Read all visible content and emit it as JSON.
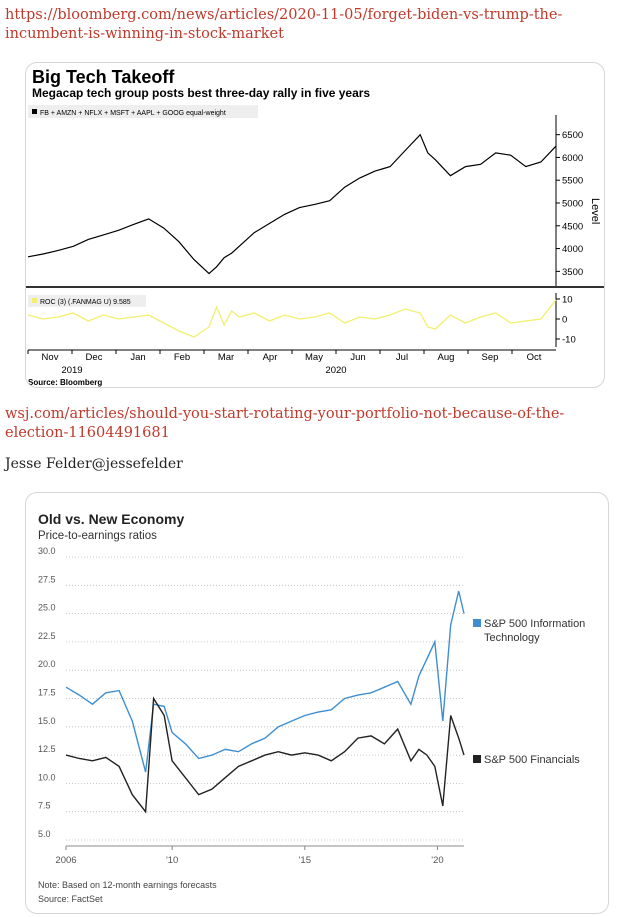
{
  "links": {
    "bloomberg": "https://bloomberg.com/news/articles/2020-11-05/forget-biden-vs-trump-the-incumbent-is-winning-in-stock-market",
    "wsj": "wsj.com/articles/should-you-start-rotating-your-portfolio-not-because-of-the-election-11604491681"
  },
  "byline": "Jesse Felder@jessefelder",
  "chart_data": [
    {
      "type": "line",
      "title": "Big Tech Takeoff",
      "subtitle": "Megacap tech group posts best three-day rally in five years",
      "legend": "FB + AMZN + NFLX + MSFT + AAPL + GOOG equal-weight",
      "ylabel": "Level",
      "ylim": [
        3200,
        6800
      ],
      "yticks": [
        "6500",
        "6000",
        "5500",
        "5000",
        "4500",
        "4000",
        "3500"
      ],
      "x_tick_labels": [
        "Nov",
        "Dec",
        "Jan",
        "Feb",
        "Mar",
        "Apr",
        "May",
        "Jun",
        "Jul",
        "Aug",
        "Sep",
        "Oct"
      ],
      "x_year_labels": [
        "2019",
        "2020"
      ],
      "source": "Source: Bloomberg",
      "x": [
        0,
        10,
        20,
        30,
        40,
        50,
        60,
        70,
        80,
        90,
        100,
        110,
        120,
        125,
        130,
        135,
        140,
        150,
        160,
        170,
        180,
        190,
        200,
        210,
        220,
        230,
        240,
        250,
        260,
        265,
        270,
        280,
        290,
        300,
        310,
        320,
        330,
        340,
        350
      ],
      "series": [
        {
          "values": [
            3820,
            3880,
            3960,
            4050,
            4200,
            4300,
            4400,
            4530,
            4650,
            4450,
            4150,
            3760,
            3450,
            3600,
            3800,
            3900,
            4050,
            4350,
            4550,
            4750,
            4900,
            4970,
            5050,
            5350,
            5550,
            5700,
            5800,
            6150,
            6500,
            6100,
            5950,
            5600,
            5800,
            5850,
            6100,
            6050,
            5800,
            5900,
            6250
          ]
        }
      ],
      "panel2": {
        "label": "ROC (3) (.FANMAG U) 9.585",
        "ylim": [
          -14,
          13
        ],
        "yticks": [
          "10",
          "0",
          "-10"
        ],
        "values": [
          2,
          0,
          1,
          3,
          -1,
          2,
          0,
          1,
          2,
          -2,
          -6,
          -9,
          -4,
          6,
          -3,
          4,
          1,
          3,
          -1,
          2,
          0,
          1,
          3,
          -2,
          1,
          0,
          2,
          5,
          3,
          -4,
          -5,
          2,
          -2,
          1,
          3,
          -2,
          -1,
          0,
          9.585
        ]
      }
    },
    {
      "type": "line",
      "title": "Old vs. New Economy",
      "subtitle": "Price-to-earnings ratios",
      "ylim": [
        5.0,
        30.0
      ],
      "yticks": [
        "30.0",
        "27.5",
        "25.0",
        "22.5",
        "20.0",
        "17.5",
        "15.0",
        "12.5",
        "10.0",
        "7.5",
        "5.0"
      ],
      "x_tick_labels": [
        "2006",
        "'10",
        "'15",
        "'20"
      ],
      "note": "Note: Based on 12-month earnings forecasts",
      "source": "Source: FactSet",
      "x": [
        2006,
        2006.5,
        2007,
        2007.5,
        2008,
        2008.5,
        2009,
        2009.3,
        2009.7,
        2010,
        2010.5,
        2011,
        2011.5,
        2012,
        2012.5,
        2013,
        2013.5,
        2014,
        2014.5,
        2015,
        2015.5,
        2016,
        2016.5,
        2017,
        2017.5,
        2018,
        2018.5,
        2019,
        2019.3,
        2019.6,
        2019.9,
        2020.2,
        2020.5,
        2020.8,
        2021
      ],
      "series": [
        {
          "name": "S&P 500 Information Technology",
          "color": "#3f8fd0",
          "values": [
            18.5,
            17.8,
            17.0,
            18.0,
            18.2,
            15.5,
            11.0,
            17.0,
            16.8,
            14.5,
            13.5,
            12.2,
            12.5,
            13.0,
            12.8,
            13.5,
            14.0,
            15.0,
            15.5,
            16.0,
            16.3,
            16.5,
            17.5,
            17.8,
            18.0,
            18.5,
            19.0,
            17.0,
            19.5,
            21.0,
            22.5,
            15.5,
            24.0,
            27.0,
            25.0
          ]
        },
        {
          "name": "S&P 500 Financials",
          "color": "#222222",
          "values": [
            12.5,
            12.2,
            12.0,
            12.3,
            11.5,
            9.0,
            7.5,
            17.5,
            16.0,
            12.0,
            10.5,
            9.0,
            9.5,
            10.5,
            11.5,
            12.0,
            12.5,
            12.8,
            12.5,
            12.7,
            12.5,
            12.0,
            12.8,
            14.0,
            14.2,
            13.5,
            14.8,
            12.0,
            13.0,
            12.5,
            11.5,
            8.0,
            16.0,
            14.0,
            12.5
          ]
        }
      ]
    }
  ]
}
